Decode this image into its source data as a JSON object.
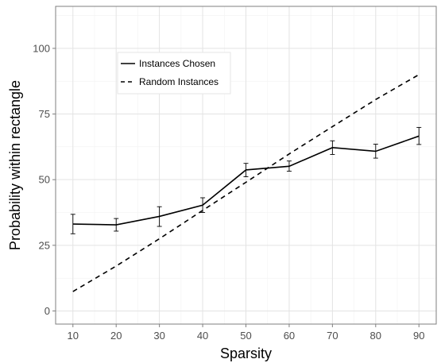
{
  "chart_data": {
    "type": "line",
    "title": "",
    "xlabel": "Sparsity",
    "ylabel": "Probability within rectangle",
    "x": [
      10,
      20,
      30,
      40,
      50,
      60,
      70,
      80,
      90
    ],
    "xticks": [
      "10",
      "20",
      "30",
      "40",
      "50",
      "60",
      "70",
      "80",
      "90"
    ],
    "yticks": [
      "0",
      "25",
      "50",
      "75",
      "100"
    ],
    "xlim": [
      6,
      94
    ],
    "ylim": [
      -5,
      116
    ],
    "grid": true,
    "legend_position": "top-left",
    "series": [
      {
        "name": "Instances Chosen",
        "style": "solid",
        "values": [
          33.1,
          32.8,
          36.0,
          40.3,
          53.7,
          55.1,
          62.2,
          60.8,
          66.6
        ],
        "error_low": [
          29.4,
          30.4,
          32.2,
          37.5,
          51.1,
          53.2,
          59.6,
          58.2,
          63.4
        ],
        "error_high": [
          36.8,
          35.2,
          39.7,
          43.1,
          56.2,
          57.1,
          64.8,
          63.5,
          69.9
        ]
      },
      {
        "name": "Random Instances",
        "style": "dashed",
        "values": [
          7.4,
          17.1,
          27.5,
          38.3,
          49.0,
          59.8,
          70.2,
          80.5,
          90.0
        ]
      }
    ],
    "colors": {
      "line": "#000000",
      "grid_major": "#e3e3e3",
      "grid_minor": "#f2f2f2",
      "panel_border": "#7f7f7f",
      "tick_text": "#4d4d4d"
    }
  }
}
